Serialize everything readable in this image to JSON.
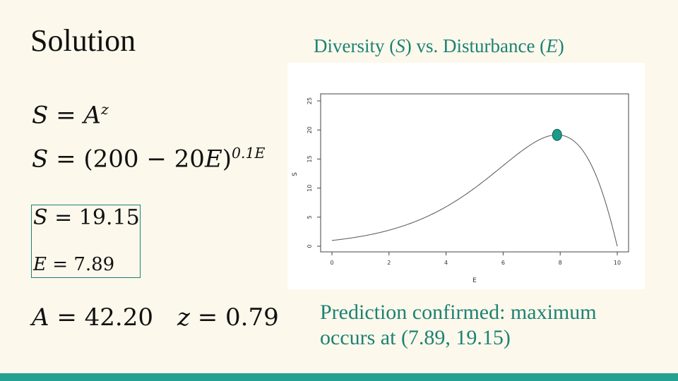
{
  "slide": {
    "title": "Solution",
    "chart_title_prefix": "Diversity (",
    "chart_title_var1": "S",
    "chart_title_middle": ") vs. Disturbance (",
    "chart_title_var2": "E",
    "chart_title_suffix": ")",
    "caption": "Prediction confirmed: maximum occurs at (7.89, 19.15)"
  },
  "equations": {
    "eq1": {
      "lhs": "S",
      "rel": " = ",
      "base": "A",
      "exp": "z"
    },
    "eq2": {
      "lhs": "S",
      "rel": " = (200 − 20",
      "var": "E",
      "close": ")",
      "exp": "0.1E"
    },
    "eq3": {
      "lhs": "S",
      "rel": " = ",
      "value": "19.15"
    },
    "eq4": {
      "lhs": "E",
      "rel": " = ",
      "value": "7.89"
    },
    "eq5a": {
      "lhs": "A",
      "rel": " = ",
      "value": "42.20"
    },
    "eq5b": {
      "lhs": "z",
      "rel": " = ",
      "value": "0.79"
    }
  },
  "colors": {
    "accent": "#1d8274",
    "point_fill": "#1a9c8a",
    "curve": "#555555",
    "footer": "#26a091"
  },
  "chart_data": {
    "type": "line",
    "xlabel": "E",
    "ylabel": "S",
    "xlim": [
      0,
      10
    ],
    "ylim": [
      0,
      25
    ],
    "xticks": [
      0,
      2,
      4,
      6,
      8,
      10
    ],
    "yticks": [
      0,
      5,
      10,
      15,
      20,
      25
    ],
    "curve_formula": "S = (200 - 20E)^(0.1E)",
    "highlight_point": {
      "x": 7.89,
      "y": 19.15
    },
    "grid": false
  }
}
